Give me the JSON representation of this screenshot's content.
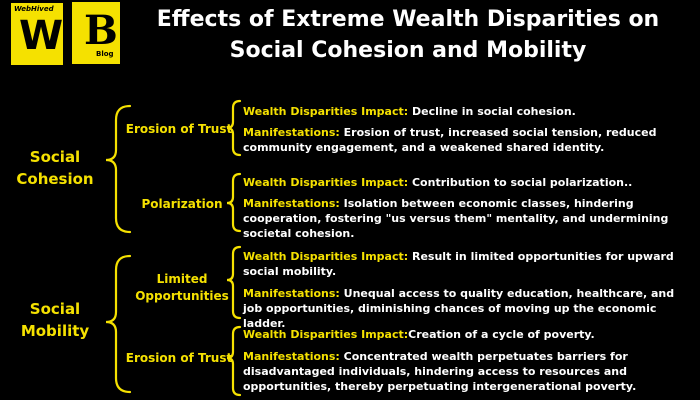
{
  "logo": {
    "w_top": "WebHived",
    "w_letter": "W",
    "b_letter": "B",
    "b_sub": "Blog"
  },
  "title": {
    "line1": "Effects of Extreme Wealth Disparities on",
    "line2": "Social Cohesion and Mobility"
  },
  "sections": [
    {
      "label_line1": "Social",
      "label_line2": "Cohesion",
      "items": [
        {
          "label": "Erosion of Trust",
          "impact_key": "Wealth Disparities Impact:",
          "impact_text": " Decline in social cohesion.",
          "manif_key": "Manifestations:",
          "manif_text": " Erosion of trust, increased social tension, reduced community engagement, and a weakened shared identity."
        },
        {
          "label": "Polarization",
          "impact_key": "Wealth Disparities Impact:",
          "impact_text": " Contribution to social polarization..",
          "manif_key": "Manifestations:",
          "manif_text": " Isolation between economic classes, hindering cooperation, fostering \"us versus them\" mentality, and undermining societal cohesion."
        }
      ]
    },
    {
      "label_line1": "Social",
      "label_line2": "Mobility",
      "items": [
        {
          "label_line1": "Limited",
          "label_line2": "Opportunities",
          "impact_key": "Wealth Disparities Impact:",
          "impact_text": " Result in limited opportunities for upward social mobility.",
          "manif_key": "Manifestations:",
          "manif_text": " Unequal access to quality education, healthcare, and job opportunities, diminishing chances of moving up the economic ladder."
        },
        {
          "label": "Erosion of Trust",
          "impact_key": "Wealth Disparities Impact:",
          "impact_text": "Creation of a cycle of poverty.",
          "manif_key": "Manifestations:",
          "manif_text": " Concentrated wealth perpetuates barriers for disadvantaged individuals, hindering access to resources and opportunities, thereby perpetuating intergenerational poverty."
        }
      ]
    }
  ],
  "colors": {
    "accent": "#f5e100",
    "text": "#ffffff",
    "background": "#000000"
  }
}
